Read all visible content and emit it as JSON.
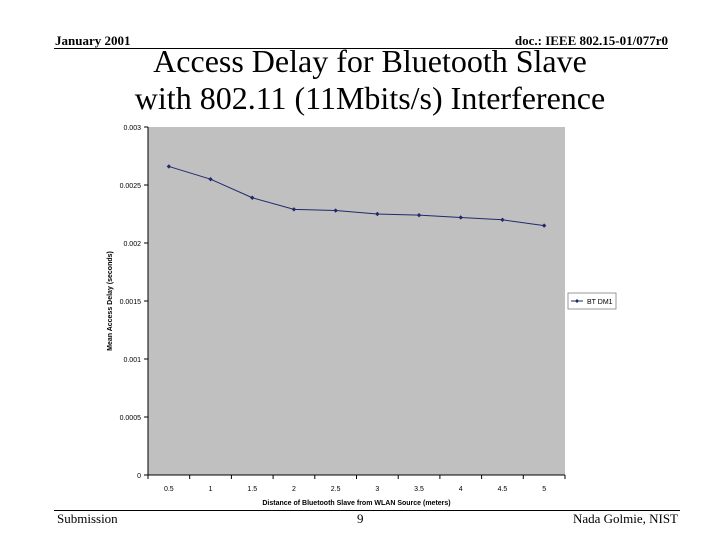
{
  "header": {
    "date": "January 2001",
    "doc_id": "doc.: IEEE 802.15-01/077r0"
  },
  "slide": {
    "title_line1": "Access Delay for Bluetooth Slave",
    "title_line2": "with 802.11 (11Mbits/s) Interference"
  },
  "footer": {
    "left": "Submission",
    "page": "9",
    "author": "Nada Golmie, NIST"
  },
  "colors": {
    "plot_bg": "#c0c0c0",
    "series": "#1f2a6b"
  },
  "chart_data": {
    "type": "line",
    "xlabel": "Distance of Bluetooth Slave from WLAN Source (meters)",
    "ylabel": "Mean Access Delay (seconds)",
    "x": [
      0.5,
      1,
      1.5,
      2,
      2.5,
      3,
      3.5,
      4,
      4.5,
      5
    ],
    "x_tick_labels": [
      "0.5",
      "1",
      "1.5",
      "2",
      "2.5",
      "3",
      "3.5",
      "4",
      "4.5",
      "5"
    ],
    "y_ticks": [
      0,
      0.0005,
      0.001,
      0.0015,
      0.002,
      0.0025,
      0.003
    ],
    "y_tick_labels": [
      "0",
      "0.0005",
      "0.001",
      "0.0015",
      "0.002",
      "0.0025",
      "0.003"
    ],
    "ylim": [
      0,
      0.003
    ],
    "grid": false,
    "legend_position": "right",
    "series": [
      {
        "name": "BT DM1",
        "values": [
          0.00266,
          0.00255,
          0.00239,
          0.00229,
          0.00228,
          0.00225,
          0.00224,
          0.00222,
          0.0022,
          0.00215
        ]
      }
    ]
  }
}
